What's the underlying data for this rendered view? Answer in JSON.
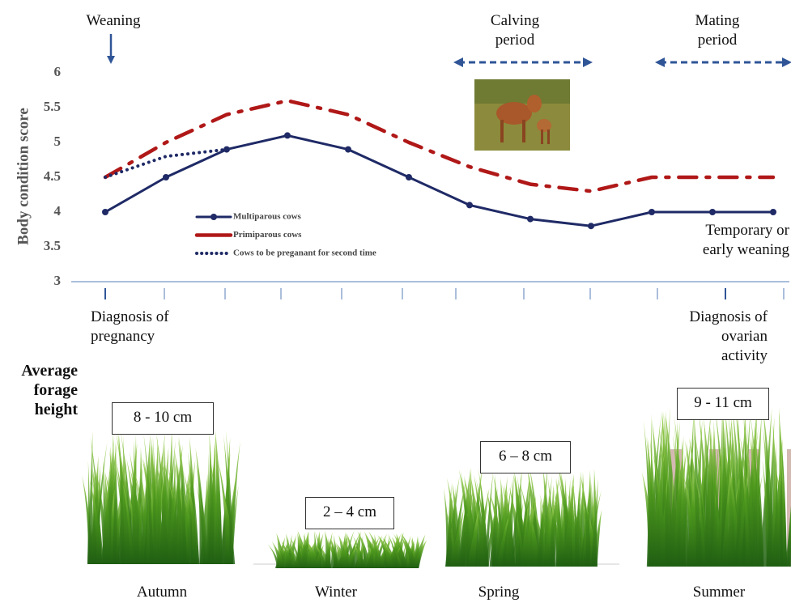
{
  "chart_data": {
    "type": "line",
    "ylabel": "Body condition score",
    "categories": [
      null,
      null,
      null,
      null,
      null,
      null,
      null,
      null,
      null,
      null,
      null,
      null
    ],
    "series": [
      {
        "name": "Multiparous cows",
        "color": "#1f2a66",
        "style": "solid",
        "markers": true,
        "values": [
          4.0,
          4.5,
          4.9,
          5.1,
          4.9,
          4.5,
          4.1,
          3.9,
          3.8,
          4.0,
          4.0,
          4.0
        ]
      },
      {
        "name": "Primiparous cows",
        "color": "#b01818",
        "style": "dashdot",
        "markers": false,
        "values": [
          4.5,
          5.0,
          5.4,
          5.6,
          5.4,
          5.0,
          4.65,
          4.4,
          4.3,
          4.5,
          4.5,
          4.5
        ]
      },
      {
        "name": "Cows to be preganant for second time",
        "color": "#1f2a66",
        "style": "dotted",
        "markers": false,
        "values": [
          4.5,
          4.8,
          4.9,
          null,
          null,
          null,
          null,
          null,
          null,
          null,
          null,
          null
        ]
      }
    ],
    "ylim": [
      3,
      6
    ],
    "yticks": [
      3,
      3.5,
      4,
      4.5,
      5,
      5.5,
      6
    ],
    "grid": false,
    "annotations": [
      "Weaning",
      "Calving period",
      "Mating period",
      "Diagnosis of pregnancy",
      "Diagnosis of ovarian activity",
      "Temporary or early weaning"
    ]
  },
  "forage": {
    "title": "Average forage height",
    "panels": [
      {
        "season": "Autumn",
        "height": "8  - 10 cm"
      },
      {
        "season": "Winter",
        "height": "2 – 4 cm"
      },
      {
        "season": "Spring",
        "height": "6 – 8 cm"
      },
      {
        "season": "Summer",
        "height": "9 - 11 cm"
      }
    ]
  }
}
